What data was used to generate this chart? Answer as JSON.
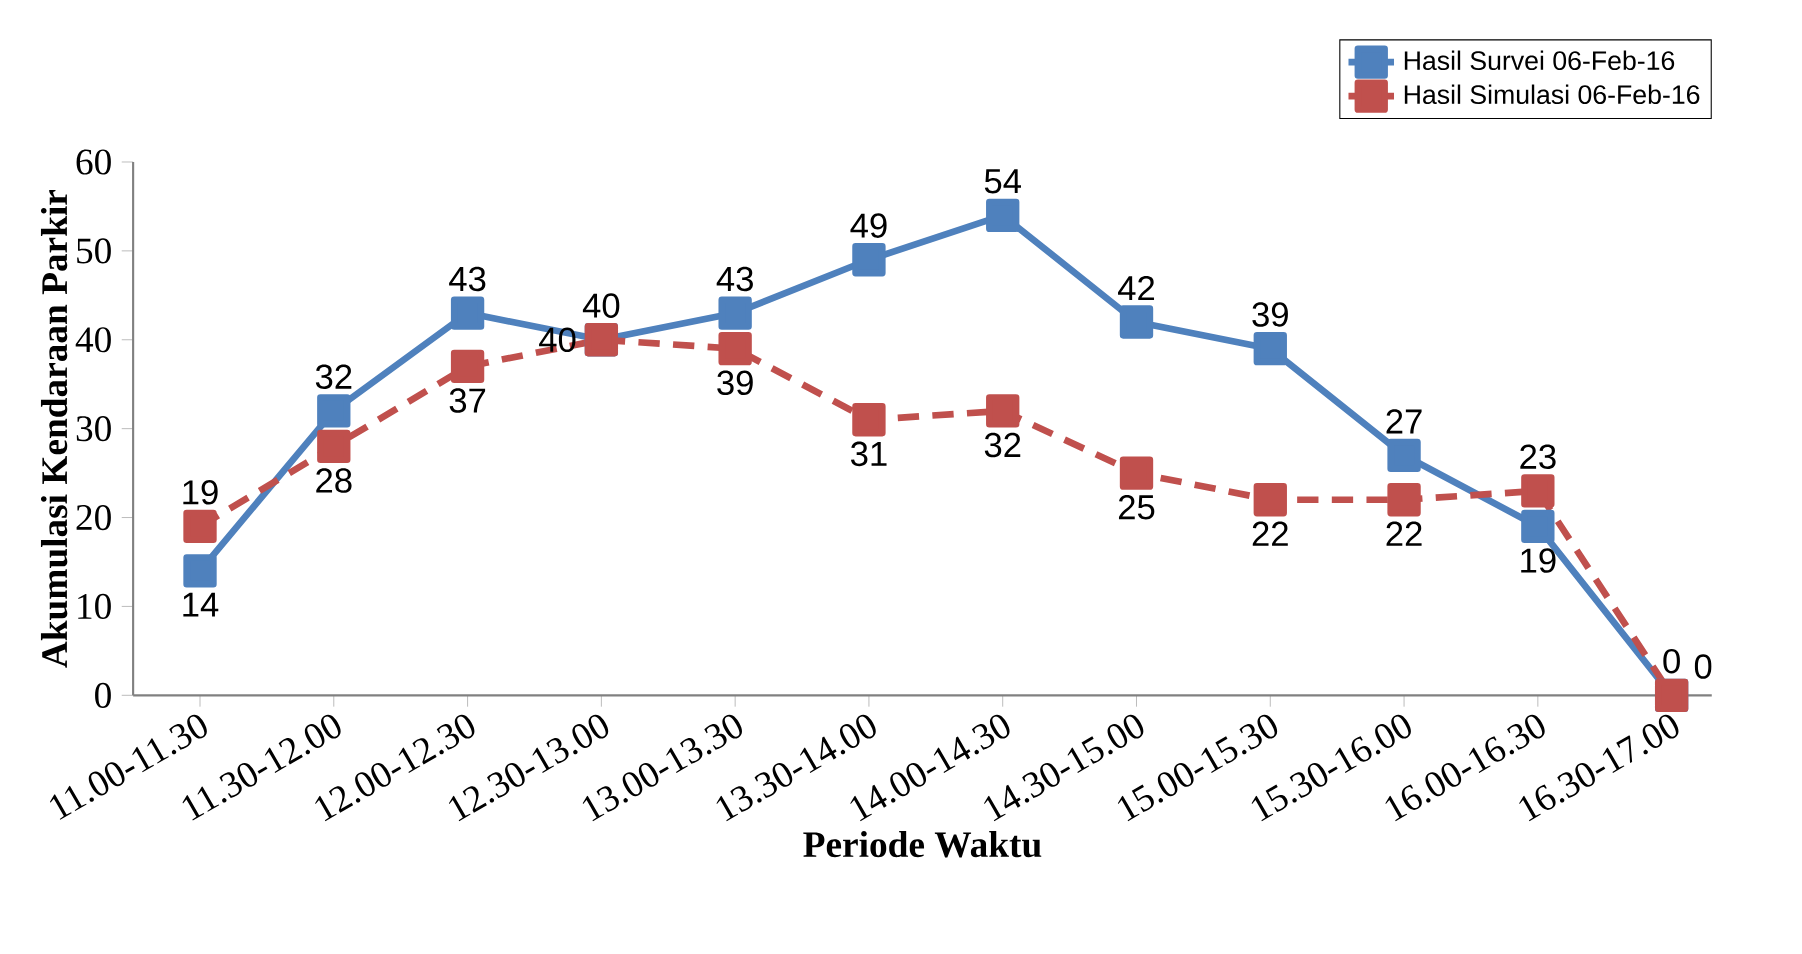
{
  "chart_data": {
    "type": "line",
    "xlabel": "Periode Waktu",
    "ylabel": "Akumulasi Kendaraan Parkir",
    "categories": [
      "11.00-11.30",
      "11.30-12.00",
      "12.00-12.30",
      "12.30-13.00",
      "13.00-13.30",
      "13.30-14.00",
      "14.00-14.30",
      "14.30-15.00",
      "15.00-15.30",
      "15.30-16.00",
      "16.00-16.30",
      "16.30-17.00"
    ],
    "series": [
      {
        "name": "Hasil Survei 06-Feb-16",
        "color": "#4f81bd",
        "line_style": "solid",
        "values": [
          14,
          32,
          43,
          40,
          43,
          49,
          54,
          42,
          39,
          27,
          19,
          0
        ]
      },
      {
        "name": "Hasil Simulasi 06-Feb-16",
        "color": "#c0504d",
        "line_style": "dashed",
        "values": [
          19,
          28,
          37,
          40,
          39,
          31,
          32,
          25,
          22,
          22,
          23,
          0
        ]
      }
    ],
    "ylim": [
      0,
      60
    ],
    "yticks": [
      0,
      10,
      20,
      30,
      40,
      50,
      60
    ],
    "grid": false,
    "legend": "top right",
    "marker": "square",
    "data_labels": true
  }
}
